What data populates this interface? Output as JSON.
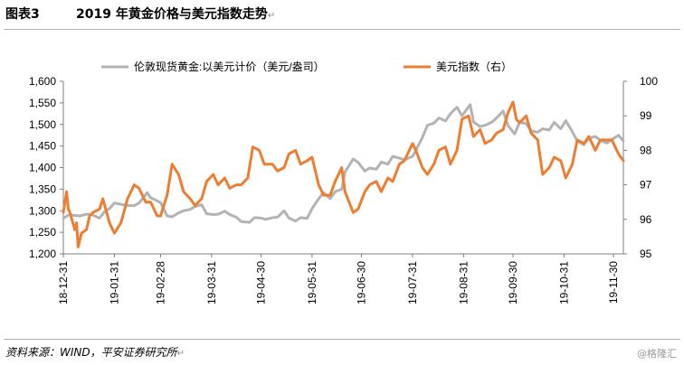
{
  "header": {
    "figure_number": "图表3",
    "title": "2019 年黄金价格与美元指数走势",
    "paragraph_mark": "↵"
  },
  "footer": {
    "source": "资料来源：WIND，平安证券研究所",
    "watermark": "@格隆汇"
  },
  "chart_data": {
    "type": "line",
    "title": "",
    "x_tick_labels": [
      "18-12-31",
      "19-01-31",
      "19-02-28",
      "19-03-31",
      "19-04-30",
      "19-05-31",
      "19-06-30",
      "19-07-31",
      "19-08-31",
      "19-09-30",
      "19-10-31",
      "19-11-30"
    ],
    "x_range": [
      "2018-12-31",
      "2019-12-06"
    ],
    "y_left": {
      "range": [
        1200,
        1600
      ],
      "ticks": [
        "1,200",
        "1,250",
        "1,300",
        "1,350",
        "1,400",
        "1,450",
        "1,500",
        "1,550",
        "1,600"
      ]
    },
    "y_right": {
      "range": [
        95,
        100
      ],
      "ticks": [
        "95",
        "96",
        "97",
        "98",
        "99",
        "100"
      ]
    },
    "grid": false,
    "legend_position": "top",
    "series": [
      {
        "name": "伦敦现货黄金:以美元计价（美元/盎司）",
        "axis": "left",
        "color": "#b3b3b3",
        "points": [
          [
            "2018-12-31",
            1282
          ],
          [
            "2019-01-03",
            1290
          ],
          [
            "2019-01-07",
            1289
          ],
          [
            "2019-01-10",
            1288
          ],
          [
            "2019-01-14",
            1292
          ],
          [
            "2019-01-17",
            1291
          ],
          [
            "2019-01-22",
            1283
          ],
          [
            "2019-01-25",
            1298
          ],
          [
            "2019-01-28",
            1305
          ],
          [
            "2019-01-31",
            1318
          ],
          [
            "2019-02-04",
            1315
          ],
          [
            "2019-02-08",
            1312
          ],
          [
            "2019-02-12",
            1312
          ],
          [
            "2019-02-15",
            1318
          ],
          [
            "2019-02-20",
            1342
          ],
          [
            "2019-02-22",
            1330
          ],
          [
            "2019-02-26",
            1323
          ],
          [
            "2019-02-28",
            1319
          ],
          [
            "2019-03-04",
            1288
          ],
          [
            "2019-03-07",
            1286
          ],
          [
            "2019-03-11",
            1295
          ],
          [
            "2019-03-14",
            1300
          ],
          [
            "2019-03-18",
            1303
          ],
          [
            "2019-03-21",
            1310
          ],
          [
            "2019-03-25",
            1314
          ],
          [
            "2019-03-28",
            1293
          ],
          [
            "2019-04-01",
            1291
          ],
          [
            "2019-04-04",
            1292
          ],
          [
            "2019-04-08",
            1299
          ],
          [
            "2019-04-11",
            1291
          ],
          [
            "2019-04-15",
            1285
          ],
          [
            "2019-04-18",
            1275
          ],
          [
            "2019-04-23",
            1273
          ],
          [
            "2019-04-26",
            1284
          ],
          [
            "2019-04-30",
            1283
          ],
          [
            "2019-05-03",
            1280
          ],
          [
            "2019-05-07",
            1284
          ],
          [
            "2019-05-10",
            1285
          ],
          [
            "2019-05-14",
            1300
          ],
          [
            "2019-05-17",
            1283
          ],
          [
            "2019-05-21",
            1276
          ],
          [
            "2019-05-24",
            1284
          ],
          [
            "2019-05-28",
            1282
          ],
          [
            "2019-05-31",
            1305
          ],
          [
            "2019-06-04",
            1328
          ],
          [
            "2019-06-07",
            1342
          ],
          [
            "2019-06-11",
            1328
          ],
          [
            "2019-06-14",
            1344
          ],
          [
            "2019-06-18",
            1350
          ],
          [
            "2019-06-20",
            1390
          ],
          [
            "2019-06-25",
            1420
          ],
          [
            "2019-06-28",
            1412
          ],
          [
            "2019-07-02",
            1392
          ],
          [
            "2019-07-05",
            1399
          ],
          [
            "2019-07-09",
            1396
          ],
          [
            "2019-07-12",
            1413
          ],
          [
            "2019-07-16",
            1408
          ],
          [
            "2019-07-19",
            1426
          ],
          [
            "2019-07-23",
            1422
          ],
          [
            "2019-07-26",
            1418
          ],
          [
            "2019-07-31",
            1426
          ],
          [
            "2019-08-02",
            1440
          ],
          [
            "2019-08-06",
            1470
          ],
          [
            "2019-08-09",
            1498
          ],
          [
            "2019-08-13",
            1503
          ],
          [
            "2019-08-16",
            1515
          ],
          [
            "2019-08-20",
            1508
          ],
          [
            "2019-08-23",
            1525
          ],
          [
            "2019-08-27",
            1540
          ],
          [
            "2019-08-30",
            1520
          ],
          [
            "2019-09-04",
            1546
          ],
          [
            "2019-09-06",
            1506
          ],
          [
            "2019-09-10",
            1495
          ],
          [
            "2019-09-13",
            1498
          ],
          [
            "2019-09-17",
            1505
          ],
          [
            "2019-09-20",
            1515
          ],
          [
            "2019-09-24",
            1531
          ],
          [
            "2019-09-27",
            1497
          ],
          [
            "2019-10-01",
            1478
          ],
          [
            "2019-10-04",
            1505
          ],
          [
            "2019-10-08",
            1502
          ],
          [
            "2019-10-11",
            1485
          ],
          [
            "2019-10-15",
            1482
          ],
          [
            "2019-10-18",
            1490
          ],
          [
            "2019-10-22",
            1487
          ],
          [
            "2019-10-25",
            1505
          ],
          [
            "2019-10-29",
            1490
          ],
          [
            "2019-11-01",
            1509
          ],
          [
            "2019-11-05",
            1483
          ],
          [
            "2019-11-08",
            1462
          ],
          [
            "2019-11-12",
            1453
          ],
          [
            "2019-11-15",
            1468
          ],
          [
            "2019-11-19",
            1472
          ],
          [
            "2019-11-22",
            1463
          ],
          [
            "2019-11-26",
            1457
          ],
          [
            "2019-11-29",
            1465
          ],
          [
            "2019-12-03",
            1475
          ],
          [
            "2019-12-06",
            1462
          ]
        ]
      },
      {
        "name": "美元指数（右）",
        "axis": "right",
        "color": "#ed7d31",
        "points": [
          [
            "2018-12-31",
            96.2
          ],
          [
            "2019-01-02",
            96.8
          ],
          [
            "2019-01-03",
            96.3
          ],
          [
            "2019-01-04",
            96.2
          ],
          [
            "2019-01-07",
            95.7
          ],
          [
            "2019-01-08",
            95.9
          ],
          [
            "2019-01-09",
            95.2
          ],
          [
            "2019-01-10",
            95.4
          ],
          [
            "2019-01-11",
            95.6
          ],
          [
            "2019-01-14",
            95.7
          ],
          [
            "2019-01-16",
            96.1
          ],
          [
            "2019-01-18",
            96.2
          ],
          [
            "2019-01-22",
            96.3
          ],
          [
            "2019-01-24",
            96.6
          ],
          [
            "2019-01-28",
            95.9
          ],
          [
            "2019-01-31",
            95.6
          ],
          [
            "2019-02-04",
            95.9
          ],
          [
            "2019-02-08",
            96.6
          ],
          [
            "2019-02-12",
            97.0
          ],
          [
            "2019-02-15",
            96.9
          ],
          [
            "2019-02-19",
            96.5
          ],
          [
            "2019-02-22",
            96.5
          ],
          [
            "2019-02-26",
            96.1
          ],
          [
            "2019-02-28",
            96.1
          ],
          [
            "2019-03-04",
            96.7
          ],
          [
            "2019-03-07",
            97.6
          ],
          [
            "2019-03-11",
            97.3
          ],
          [
            "2019-03-14",
            96.8
          ],
          [
            "2019-03-18",
            96.6
          ],
          [
            "2019-03-21",
            96.4
          ],
          [
            "2019-03-25",
            96.6
          ],
          [
            "2019-03-28",
            97.1
          ],
          [
            "2019-04-01",
            97.3
          ],
          [
            "2019-04-04",
            97.0
          ],
          [
            "2019-04-08",
            97.2
          ],
          [
            "2019-04-11",
            96.9
          ],
          [
            "2019-04-15",
            97.0
          ],
          [
            "2019-04-18",
            97.0
          ],
          [
            "2019-04-22",
            97.2
          ],
          [
            "2019-04-25",
            98.1
          ],
          [
            "2019-04-29",
            98.0
          ],
          [
            "2019-05-02",
            97.6
          ],
          [
            "2019-05-07",
            97.6
          ],
          [
            "2019-05-10",
            97.4
          ],
          [
            "2019-05-14",
            97.5
          ],
          [
            "2019-05-17",
            97.9
          ],
          [
            "2019-05-21",
            98.0
          ],
          [
            "2019-05-24",
            97.6
          ],
          [
            "2019-05-28",
            97.7
          ],
          [
            "2019-05-31",
            97.8
          ],
          [
            "2019-06-04",
            97.0
          ],
          [
            "2019-06-07",
            96.7
          ],
          [
            "2019-06-11",
            96.7
          ],
          [
            "2019-06-14",
            97.1
          ],
          [
            "2019-06-18",
            97.5
          ],
          [
            "2019-06-20",
            96.8
          ],
          [
            "2019-06-25",
            96.2
          ],
          [
            "2019-06-28",
            96.3
          ],
          [
            "2019-07-02",
            96.8
          ],
          [
            "2019-07-05",
            97.0
          ],
          [
            "2019-07-09",
            97.1
          ],
          [
            "2019-07-12",
            96.8
          ],
          [
            "2019-07-16",
            97.2
          ],
          [
            "2019-07-19",
            97.1
          ],
          [
            "2019-07-23",
            97.6
          ],
          [
            "2019-07-26",
            97.7
          ],
          [
            "2019-07-31",
            98.2
          ],
          [
            "2019-08-02",
            98.0
          ],
          [
            "2019-08-06",
            97.5
          ],
          [
            "2019-08-09",
            97.3
          ],
          [
            "2019-08-13",
            97.6
          ],
          [
            "2019-08-16",
            98.0
          ],
          [
            "2019-08-20",
            98.1
          ],
          [
            "2019-08-23",
            97.6
          ],
          [
            "2019-08-27",
            98.0
          ],
          [
            "2019-08-30",
            98.9
          ],
          [
            "2019-09-03",
            99.0
          ],
          [
            "2019-09-06",
            98.4
          ],
          [
            "2019-09-10",
            98.6
          ],
          [
            "2019-09-13",
            98.2
          ],
          [
            "2019-09-17",
            98.3
          ],
          [
            "2019-09-20",
            98.5
          ],
          [
            "2019-09-24",
            98.6
          ],
          [
            "2019-09-27",
            99.1
          ],
          [
            "2019-09-30",
            99.4
          ],
          [
            "2019-10-02",
            98.9
          ],
          [
            "2019-10-04",
            98.8
          ],
          [
            "2019-10-08",
            99.0
          ],
          [
            "2019-10-11",
            98.5
          ],
          [
            "2019-10-15",
            98.3
          ],
          [
            "2019-10-18",
            97.3
          ],
          [
            "2019-10-22",
            97.5
          ],
          [
            "2019-10-25",
            97.8
          ],
          [
            "2019-10-29",
            97.7
          ],
          [
            "2019-11-01",
            97.2
          ],
          [
            "2019-11-05",
            97.6
          ],
          [
            "2019-11-08",
            98.3
          ],
          [
            "2019-11-12",
            98.2
          ],
          [
            "2019-11-15",
            98.4
          ],
          [
            "2019-11-19",
            98.0
          ],
          [
            "2019-11-22",
            98.3
          ],
          [
            "2019-11-26",
            98.3
          ],
          [
            "2019-11-29",
            98.3
          ],
          [
            "2019-12-03",
            97.9
          ],
          [
            "2019-12-06",
            97.7
          ]
        ]
      }
    ]
  }
}
